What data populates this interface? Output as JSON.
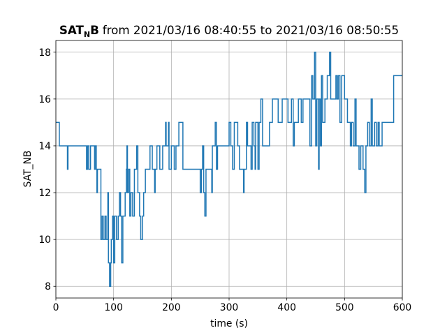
{
  "chart_data": {
    "type": "line",
    "title_bold": "SAT",
    "title_subscript": "N",
    "title_bold_end": "B",
    "title": "from 2021/03/16 08:40:55 to 2021/03/16 08:50:55",
    "xlabel": "time (s)",
    "ylabel": "SAT_NB",
    "color": "#1f77b4",
    "step": true,
    "grid": true,
    "xlim": [
      0,
      600
    ],
    "ylim": [
      7.5,
      18.5
    ],
    "xticks": [
      0,
      100,
      200,
      300,
      400,
      500,
      600
    ],
    "yticks": [
      8,
      10,
      12,
      14,
      16,
      18
    ],
    "x": [
      0,
      6,
      20,
      21,
      53,
      55,
      57,
      60,
      67,
      68,
      70,
      71,
      72,
      78,
      80,
      82,
      85,
      87,
      90,
      91,
      93,
      95,
      96,
      98,
      100,
      102,
      105,
      108,
      110,
      112,
      114,
      116,
      120,
      122,
      123,
      124,
      126,
      128,
      130,
      133,
      136,
      140,
      142,
      145,
      147,
      150,
      152,
      155,
      163,
      167,
      171,
      172,
      175,
      180,
      185,
      190,
      191,
      195,
      196,
      200,
      205,
      208,
      213,
      220,
      250,
      252,
      254,
      256,
      258,
      260,
      265,
      270,
      271,
      276,
      278,
      280,
      300,
      303,
      306,
      309,
      315,
      318,
      325,
      326,
      330,
      332,
      338,
      340,
      343,
      345,
      346,
      350,
      352,
      355,
      358,
      370,
      375,
      385,
      392,
      402,
      408,
      411,
      413,
      420,
      425,
      428,
      440,
      443,
      445,
      448,
      450,
      452,
      455,
      456,
      458,
      460,
      462,
      466,
      470,
      474,
      476,
      485,
      487,
      489,
      492,
      495,
      500,
      505,
      510,
      512,
      515,
      518,
      520,
      525,
      528,
      532,
      535,
      537,
      540,
      543,
      546,
      548,
      552,
      555,
      558,
      560,
      565,
      585,
      600
    ],
    "values": [
      15,
      14,
      13,
      14,
      13,
      14,
      13,
      14,
      13,
      14,
      13,
      12,
      13,
      10,
      11,
      10,
      11,
      10,
      12,
      9,
      8,
      9,
      10,
      11,
      9,
      11,
      10,
      11,
      12,
      11,
      9,
      11,
      12,
      13,
      14,
      12,
      13,
      11,
      12,
      11,
      13,
      14,
      12,
      11,
      10,
      11,
      12,
      13,
      14,
      13,
      12,
      13,
      14,
      13,
      14,
      15,
      14,
      15,
      13,
      14,
      13,
      14,
      15,
      13,
      12,
      13,
      14,
      12,
      11,
      13,
      13,
      12,
      14,
      15,
      13,
      14,
      15,
      14,
      13,
      15,
      14,
      13,
      12,
      13,
      15,
      14,
      13,
      15,
      14,
      13,
      15,
      13,
      15,
      16,
      14,
      15,
      16,
      15,
      16,
      15,
      16,
      14,
      15,
      16,
      15,
      16,
      14,
      17,
      16,
      18,
      14,
      16,
      13,
      16,
      14,
      17,
      15,
      16,
      17,
      18,
      16,
      17,
      16,
      17,
      15,
      17,
      16,
      15,
      14,
      15,
      14,
      16,
      14,
      13,
      14,
      13,
      12,
      14,
      15,
      14,
      16,
      14,
      15,
      14,
      15,
      14,
      15,
      17,
      17
    ]
  }
}
